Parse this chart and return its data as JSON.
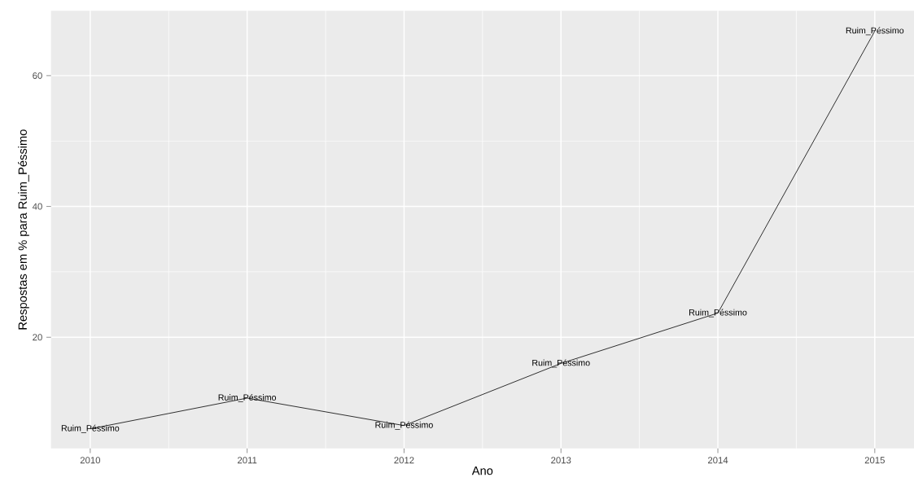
{
  "chart_data": {
    "type": "line",
    "xlabel": "Ano",
    "ylabel": "Respostas em % para Ruim_Péssimo",
    "x": [
      2010,
      2011,
      2012,
      2013,
      2014,
      2015
    ],
    "series": [
      {
        "color": "#000000",
        "values": [
          6,
          10.7,
          6.5,
          16,
          23.7,
          66.8
        ]
      }
    ],
    "xlim": [
      2009.75,
      2015.25
    ],
    "ylim": [
      3,
      69.9
    ],
    "xticks": [
      2010,
      2011,
      2012,
      2013,
      2014,
      2015
    ],
    "yticks": [
      20,
      40,
      60
    ],
    "grid": true,
    "marker": "none",
    "line_style": "solid",
    "annotations": [
      {
        "text": "Ruim_Péssimo",
        "x": 2010,
        "y": 6
      },
      {
        "text": "Ruim_Péssimo",
        "x": 2011,
        "y": 10.7
      },
      {
        "text": "Ruim_Péssimo",
        "x": 2012,
        "y": 6.5
      },
      {
        "text": "Ruim_Péssimo",
        "x": 2013,
        "y": 16
      },
      {
        "text": "Ruim_Péssimo",
        "x": 2014,
        "y": 23.7
      },
      {
        "text": "Ruim_Péssimo",
        "x": 2015,
        "y": 66.8
      }
    ]
  }
}
